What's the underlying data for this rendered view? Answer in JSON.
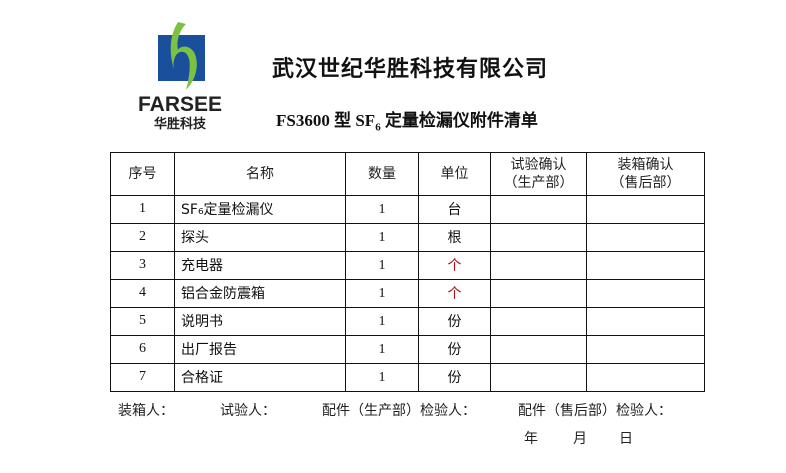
{
  "logo": {
    "text": "FARSEE",
    "subtext": "华胜科技",
    "colors": {
      "blue": "#1a4f9c",
      "green": "#7cc242"
    }
  },
  "company": "武汉世纪华胜科技有限公司",
  "subtitle": {
    "prefix": "FS3600 型 SF",
    "subscript": "6",
    "suffix": " 定量检漏仪附件清单"
  },
  "table": {
    "headers": [
      "序号",
      "名称",
      "数量",
      "单位",
      "试验确认",
      "（生产部）",
      "装箱确认",
      "（售后部）"
    ],
    "rows": [
      {
        "no": "1",
        "name": "SF₆定量检漏仪",
        "qty": "1",
        "unit": "台"
      },
      {
        "no": "2",
        "name": "探头",
        "qty": "1",
        "unit": "根"
      },
      {
        "no": "3",
        "name": "充电器",
        "qty": "1",
        "unit": "个",
        "unit_color": "#b01010"
      },
      {
        "no": "4",
        "name": "铝合金防震箱",
        "qty": "1",
        "unit": "个",
        "unit_color": "#b01010"
      },
      {
        "no": "5",
        "name": "说明书",
        "qty": "1",
        "unit": "份"
      },
      {
        "no": "6",
        "name": "出厂报告",
        "qty": "1",
        "unit": "份"
      },
      {
        "no": "7",
        "name": "合格证",
        "qty": "1",
        "unit": "份"
      }
    ]
  },
  "footer": {
    "packer": "装箱人：",
    "tester": "试验人：",
    "prod_inspector": "配件（生产部）检验人：",
    "sales_inspector": "配件（售后部）检验人：",
    "year": "年",
    "month": "月",
    "day": "日"
  }
}
